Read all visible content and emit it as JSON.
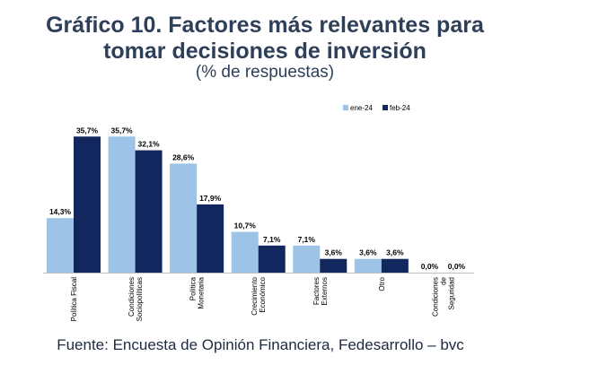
{
  "title_line1": "Gráfico 10. Factores más relevantes para",
  "title_line2": "tomar decisiones de inversión",
  "subtitle": "(% de respuestas)",
  "source": "Fuente: Encuesta de Opinión Financiera, Fedesarrollo – bvc",
  "chart_data": {
    "type": "bar",
    "title": "Gráfico 10. Factores más relevantes para tomar decisiones de inversión",
    "subtitle": "(% de respuestas)",
    "categories": [
      [
        "Política Fiscal"
      ],
      [
        "Condiciones",
        "Sociopolíticas"
      ],
      [
        "Política",
        "Monetaria"
      ],
      [
        "Crecimiento",
        "Económico"
      ],
      [
        "Factores",
        "Externos"
      ],
      [
        "Otro"
      ],
      [
        "Condiciones",
        "de",
        "Seguridad"
      ]
    ],
    "series": [
      {
        "name": "ene-24",
        "color": "#9dc3e6",
        "values": [
          14.3,
          35.7,
          28.6,
          10.7,
          7.1,
          3.6,
          0.0
        ],
        "labels": [
          "14,3%",
          "35,7%",
          "28,6%",
          "10,7%",
          "7,1%",
          "3,6%",
          "0,0%"
        ]
      },
      {
        "name": "feb-24",
        "color": "#12275e",
        "values": [
          35.7,
          32.1,
          17.9,
          7.1,
          3.6,
          3.6,
          0.0
        ],
        "labels": [
          "35,7%",
          "32,1%",
          "17,9%",
          "7,1%",
          "3,6%",
          "3,6%",
          "0,0%"
        ]
      }
    ],
    "ylim": [
      0,
      40
    ],
    "grid": false,
    "legend_position": "top-right"
  }
}
